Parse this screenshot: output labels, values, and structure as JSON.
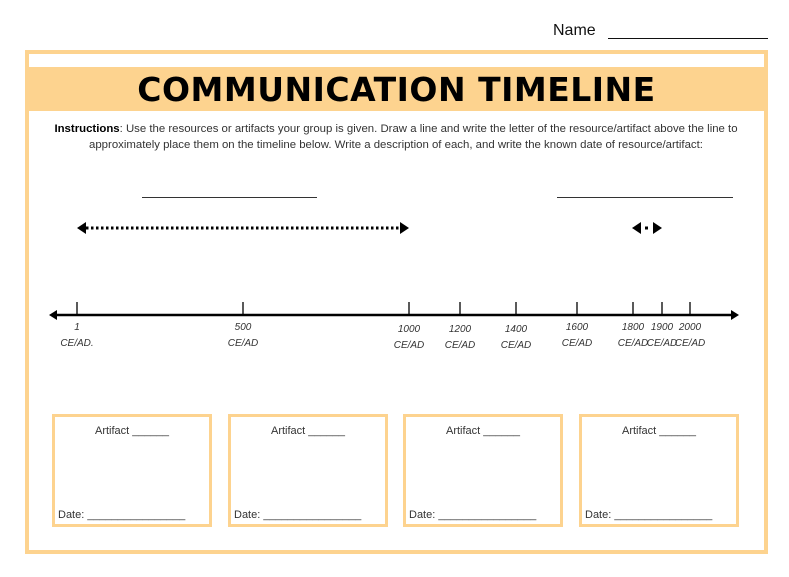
{
  "name_label": "Name",
  "title": "COMMUNICATION TIMELINE",
  "instructions": {
    "bold": "Instructions",
    "text": ": Use the resources or artifacts your group is given. Draw a line and write the letter of the resource/artifact above the line to approximately place them on the timeline below. Write a description of each, and write the known date of resource/artifact:"
  },
  "timeline": {
    "ticks": [
      {
        "year": "1",
        "era": "CE/AD."
      },
      {
        "year": "500",
        "era": "CE/AD"
      },
      {
        "year": "1000",
        "era": "CE/AD"
      },
      {
        "year": "1200",
        "era": "CE/AD"
      },
      {
        "year": "1400",
        "era": "CE/AD"
      },
      {
        "year": "1600",
        "era": "CE/AD"
      },
      {
        "year": "1800",
        "era": "CE/AD"
      },
      {
        "year": "1900",
        "era": "CE/AD"
      },
      {
        "year": "2000",
        "era": "CE/AD"
      }
    ]
  },
  "artifact_boxes": [
    {
      "label": "Artifact ______",
      "date": "Date: ________________"
    },
    {
      "label": "Artifact ______",
      "date": "Date: ________________"
    },
    {
      "label": "Artifact ______",
      "date": "Date: ________________"
    },
    {
      "label": "Artifact ______",
      "date": "Date: ________________"
    }
  ],
  "colors": {
    "accent": "#FDD38F"
  }
}
